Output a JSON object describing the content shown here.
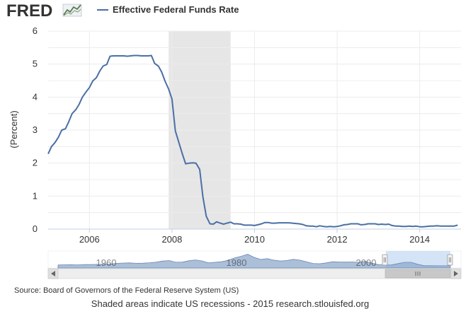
{
  "logo": {
    "text": "FRED"
  },
  "footer": {
    "source": "Source: Board of Governors of the Federal Reserve System (US)",
    "note": "Shaded areas indicate US recessions - 2015 research.stlouisfed.org"
  },
  "colors": {
    "series": "#4a6fa5",
    "recession": "#e6e6e6",
    "navigator_fill": "#8fa9cc",
    "navigator_handle": "#c9dcf2"
  },
  "chart_data": {
    "type": "line",
    "title": "",
    "ylabel": "(Percent)",
    "xlabel": "",
    "xlim": [
      2005.0,
      2015.0
    ],
    "ylim": [
      0,
      6
    ],
    "yticks": [
      "0",
      "0.5",
      "1",
      "1.5",
      "2",
      "2.5",
      "3",
      "3.5",
      "4",
      "4.5",
      "5",
      "5.5",
      "6"
    ],
    "yticks_shown": [
      "0",
      "1",
      "2",
      "3",
      "4",
      "5",
      "6"
    ],
    "xticks": [
      "2006",
      "2008",
      "2010",
      "2012",
      "2014"
    ],
    "legend": "top-left",
    "grid": true,
    "recessions": [
      {
        "start": 2007.92,
        "end": 2009.42
      }
    ],
    "series": [
      {
        "name": "Effective Federal Funds Rate",
        "x": [
          2005.0,
          2005.08,
          2005.17,
          2005.25,
          2005.33,
          2005.42,
          2005.5,
          2005.58,
          2005.67,
          2005.75,
          2005.83,
          2005.92,
          2006.0,
          2006.08,
          2006.17,
          2006.25,
          2006.33,
          2006.42,
          2006.5,
          2006.58,
          2006.67,
          2006.75,
          2006.83,
          2006.92,
          2007.0,
          2007.08,
          2007.17,
          2007.25,
          2007.33,
          2007.42,
          2007.5,
          2007.58,
          2007.67,
          2007.75,
          2007.83,
          2007.92,
          2008.0,
          2008.08,
          2008.17,
          2008.25,
          2008.33,
          2008.42,
          2008.5,
          2008.58,
          2008.67,
          2008.75,
          2008.83,
          2008.92,
          2009.0,
          2009.08,
          2009.17,
          2009.25,
          2009.33,
          2009.42,
          2009.5,
          2009.58,
          2009.67,
          2009.75,
          2009.83,
          2009.92,
          2010.0,
          2010.08,
          2010.17,
          2010.25,
          2010.33,
          2010.42,
          2010.5,
          2010.58,
          2010.67,
          2010.75,
          2010.83,
          2010.92,
          2011.0,
          2011.08,
          2011.17,
          2011.25,
          2011.33,
          2011.42,
          2011.5,
          2011.58,
          2011.67,
          2011.75,
          2011.83,
          2011.92,
          2012.0,
          2012.08,
          2012.17,
          2012.25,
          2012.33,
          2012.42,
          2012.5,
          2012.58,
          2012.67,
          2012.75,
          2012.83,
          2012.92,
          2013.0,
          2013.08,
          2013.17,
          2013.25,
          2013.33,
          2013.42,
          2013.5,
          2013.58,
          2013.67,
          2013.75,
          2013.83,
          2013.92,
          2014.0,
          2014.08,
          2014.17,
          2014.25,
          2014.33,
          2014.42,
          2014.5,
          2014.58,
          2014.67,
          2014.75,
          2014.83,
          2014.92
        ],
        "y": [
          2.28,
          2.5,
          2.63,
          2.79,
          3.0,
          3.04,
          3.26,
          3.5,
          3.62,
          3.78,
          4.0,
          4.16,
          4.29,
          4.49,
          4.59,
          4.79,
          4.94,
          4.99,
          5.24,
          5.25,
          5.25,
          5.25,
          5.25,
          5.24,
          5.25,
          5.26,
          5.26,
          5.25,
          5.25,
          5.25,
          5.26,
          5.02,
          4.94,
          4.76,
          4.49,
          4.24,
          3.94,
          2.98,
          2.61,
          2.28,
          1.98,
          2.0,
          2.01,
          2.0,
          1.81,
          0.97,
          0.39,
          0.16,
          0.15,
          0.22,
          0.18,
          0.15,
          0.18,
          0.21,
          0.16,
          0.16,
          0.15,
          0.12,
          0.12,
          0.12,
          0.11,
          0.13,
          0.16,
          0.2,
          0.2,
          0.18,
          0.18,
          0.19,
          0.19,
          0.19,
          0.19,
          0.18,
          0.17,
          0.16,
          0.14,
          0.1,
          0.09,
          0.09,
          0.07,
          0.1,
          0.08,
          0.07,
          0.08,
          0.07,
          0.08,
          0.1,
          0.13,
          0.14,
          0.16,
          0.16,
          0.16,
          0.13,
          0.14,
          0.16,
          0.16,
          0.16,
          0.14,
          0.15,
          0.14,
          0.15,
          0.11,
          0.09,
          0.09,
          0.08,
          0.08,
          0.09,
          0.08,
          0.09,
          0.07,
          0.07,
          0.08,
          0.09,
          0.09,
          0.1,
          0.09,
          0.09,
          0.09,
          0.09,
          0.09,
          0.12
        ]
      }
    ],
    "navigator": {
      "labels": [
        "1960",
        "1980",
        "2000"
      ],
      "series_y": [
        1.2,
        1.5,
        1.6,
        1.4,
        1.9,
        1.8,
        2.1,
        2.4,
        2.6,
        3.5,
        4.0,
        4.2,
        3.6,
        3.8,
        4.4,
        5.2,
        6.8,
        7.5,
        5.1,
        5.3,
        7.2,
        8.4,
        7.0,
        4.2,
        5.1,
        5.8,
        7.9,
        11.2,
        13.5,
        16.4,
        12.0,
        9.1,
        10.2,
        8.1,
        6.8,
        7.6,
        9.2,
        8.1,
        5.7,
        3.4,
        3.0,
        4.2,
        5.8,
        5.5,
        5.3,
        5.5,
        5.0,
        6.2,
        3.9,
        1.7,
        1.1,
        1.3,
        3.2,
        5.0,
        5.0,
        2.2,
        0.2,
        0.2,
        0.1,
        0.1,
        0.1
      ]
    }
  }
}
